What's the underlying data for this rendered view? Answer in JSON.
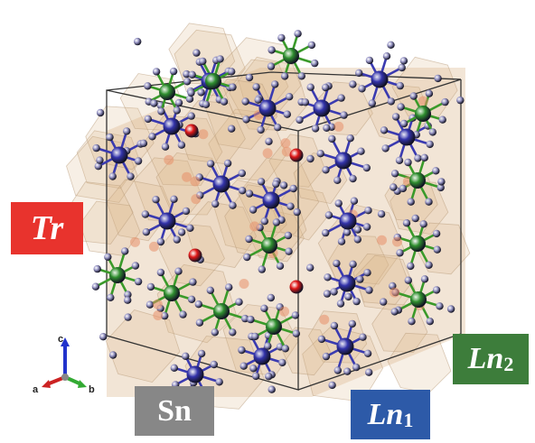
{
  "labels": {
    "tr": "Tr",
    "sn": "Sn",
    "ln1": {
      "base": "Ln",
      "sub": "1"
    },
    "ln2": {
      "base": "Ln",
      "sub": "2"
    }
  },
  "axes": {
    "a": "a",
    "b": "b",
    "c": "c"
  },
  "colors": {
    "tr_box": "#e8332d",
    "sn_box": "#878787",
    "ln1_box": "#2d5aa8",
    "ln2_box": "#3d7d3b",
    "polyhedron_fill": "#d9b48a",
    "bond_blue": "#3a3ab0",
    "bond_green": "#3a9a2a",
    "atom_blue": "#3333aa",
    "atom_green": "#2f8f2f",
    "atom_red": "#e01818",
    "atom_lavender": "#9a98c8",
    "cell_edge": "#333333",
    "axis_a": "#cc2222",
    "axis_b": "#33aa33",
    "axis_c": "#2233cc"
  }
}
